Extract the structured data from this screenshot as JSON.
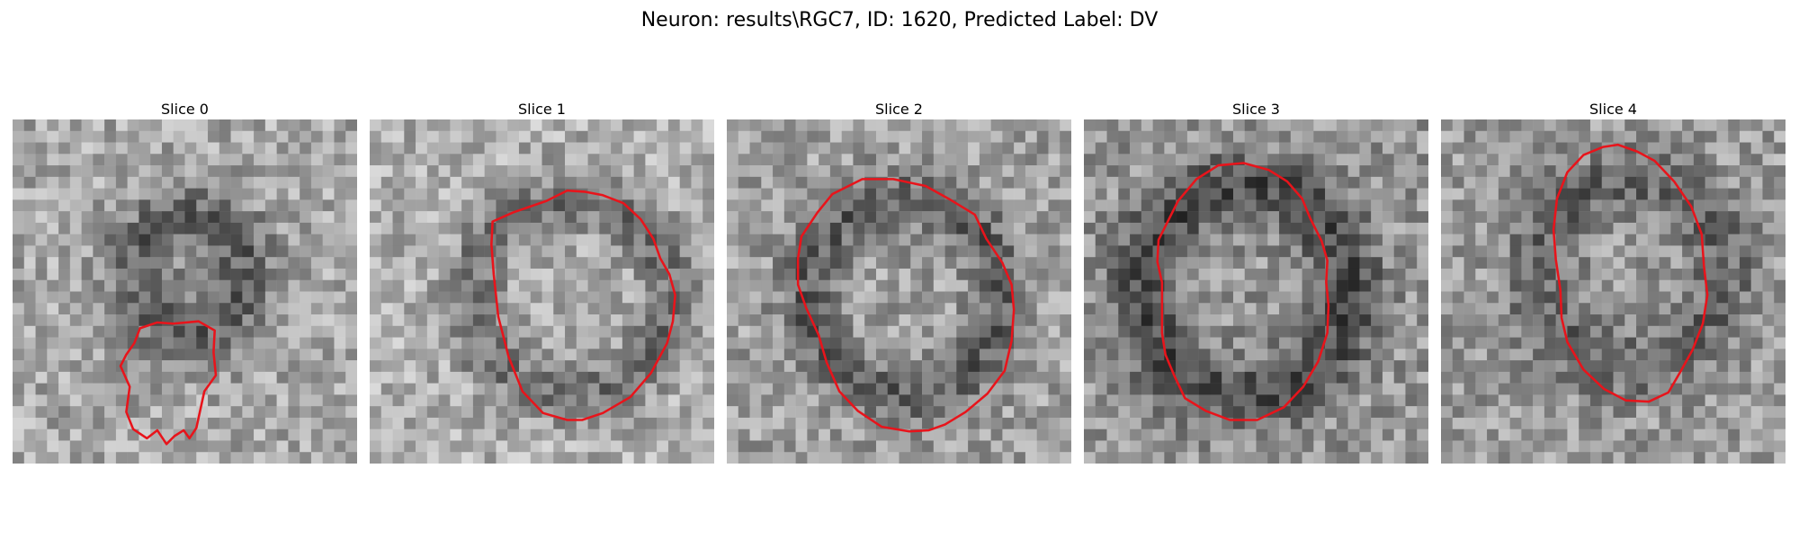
{
  "figure": {
    "title": "Neuron: results\\RGC7, ID: 1620, Predicted Label: DV"
  },
  "panels": [
    {
      "title": "Slice 0",
      "contour": [
        [
          14,
          17.8
        ],
        [
          16.2,
          17.6
        ],
        [
          17.6,
          18.4
        ],
        [
          17.5,
          20.3
        ],
        [
          17.7,
          22.3
        ],
        [
          16.7,
          23.7
        ],
        [
          16,
          26.9
        ],
        [
          15.4,
          27.8
        ],
        [
          14.9,
          27.1
        ],
        [
          14.1,
          27.6
        ],
        [
          13.4,
          28.3
        ],
        [
          12.6,
          27.1
        ],
        [
          11.7,
          27.8
        ],
        [
          10.5,
          27
        ],
        [
          9.9,
          25.5
        ],
        [
          10.2,
          23.3
        ],
        [
          9.4,
          21.5
        ],
        [
          9.9,
          20.5
        ],
        [
          10.6,
          19.5
        ],
        [
          11.1,
          18.2
        ],
        [
          12.6,
          17.7
        ]
      ],
      "cells_rows_hint": "noise-field"
    },
    {
      "title": "Slice 1",
      "contour": [
        [
          10.7,
          8.9
        ],
        [
          12.5,
          8.1
        ],
        [
          15.4,
          7.1
        ],
        [
          17.2,
          6.2
        ],
        [
          18.7,
          6.3
        ],
        [
          20.3,
          6.6
        ],
        [
          22.1,
          7.3
        ],
        [
          23.6,
          8.7
        ],
        [
          24.7,
          10.4
        ],
        [
          25.3,
          12.1
        ],
        [
          26.1,
          13.5
        ],
        [
          26.6,
          15.3
        ],
        [
          26.4,
          17.6
        ],
        [
          25.9,
          19.5
        ],
        [
          24.5,
          22.1
        ],
        [
          22.7,
          24.2
        ],
        [
          20.3,
          25.6
        ],
        [
          18.5,
          26.2
        ],
        [
          17.2,
          26.2
        ],
        [
          15.1,
          25.6
        ],
        [
          13.3,
          23.7
        ],
        [
          12.1,
          20.7
        ],
        [
          11.2,
          17.2
        ],
        [
          10.8,
          13.5
        ],
        [
          10.6,
          10.9
        ]
      ]
    },
    {
      "title": "Slice 2",
      "contour": [
        [
          6.5,
          10.2
        ],
        [
          7.9,
          8.1
        ],
        [
          9.2,
          6.5
        ],
        [
          11.8,
          5.2
        ],
        [
          14.5,
          5.2
        ],
        [
          17.3,
          5.8
        ],
        [
          19.3,
          6.9
        ],
        [
          21.6,
          8.3
        ],
        [
          22.6,
          10.4
        ],
        [
          24,
          12.5
        ],
        [
          24.8,
          14.4
        ],
        [
          25,
          16.6
        ],
        [
          24.8,
          19.3
        ],
        [
          24.2,
          21.9
        ],
        [
          22.7,
          23.9
        ],
        [
          20.8,
          25.5
        ],
        [
          19,
          26.6
        ],
        [
          17.6,
          27.1
        ],
        [
          15.9,
          27.2
        ],
        [
          13.5,
          26.8
        ],
        [
          11.4,
          25.4
        ],
        [
          9.8,
          23.7
        ],
        [
          8.7,
          21.2
        ],
        [
          8,
          18.8
        ],
        [
          6.9,
          16.4
        ],
        [
          6.2,
          14.4
        ],
        [
          6.2,
          12.1
        ]
      ]
    },
    {
      "title": "Slice 3",
      "contour": [
        [
          6.5,
          10.5
        ],
        [
          8.2,
          7.1
        ],
        [
          9.8,
          5.2
        ],
        [
          11.7,
          4
        ],
        [
          13.9,
          3.8
        ],
        [
          16.1,
          4.4
        ],
        [
          17.7,
          5.4
        ],
        [
          19,
          6.9
        ],
        [
          19.7,
          8.6
        ],
        [
          20.7,
          10.6
        ],
        [
          21.2,
          12.3
        ],
        [
          21.1,
          14.2
        ],
        [
          21.3,
          16.2
        ],
        [
          21.2,
          18.6
        ],
        [
          20.4,
          21.1
        ],
        [
          19.1,
          23.3
        ],
        [
          17.4,
          25.1
        ],
        [
          15.1,
          26.2
        ],
        [
          12.7,
          26.2
        ],
        [
          10.6,
          25.4
        ],
        [
          8.8,
          24.3
        ],
        [
          7.9,
          22.4
        ],
        [
          7.1,
          20.5
        ],
        [
          6.8,
          18.6
        ],
        [
          6.8,
          16.4
        ],
        [
          6.8,
          14.2
        ],
        [
          6.4,
          12.4
        ]
      ]
    },
    {
      "title": "Slice 4",
      "contour": [
        [
          10.1,
          6.9
        ],
        [
          11,
          4.6
        ],
        [
          12.4,
          3.1
        ],
        [
          14.1,
          2.4
        ],
        [
          15.4,
          2.2
        ],
        [
          17.1,
          2.8
        ],
        [
          18.6,
          3.6
        ],
        [
          20.3,
          5.4
        ],
        [
          21.8,
          7.6
        ],
        [
          22.7,
          10
        ],
        [
          22.9,
          12.8
        ],
        [
          23.2,
          15.3
        ],
        [
          22.8,
          17.8
        ],
        [
          21.9,
          20.1
        ],
        [
          20.9,
          21.9
        ],
        [
          19.8,
          23.8
        ],
        [
          18.1,
          24.6
        ],
        [
          16.1,
          24.5
        ],
        [
          14.2,
          23.5
        ],
        [
          12.4,
          21.8
        ],
        [
          11,
          19.4
        ],
        [
          10.5,
          17.3
        ],
        [
          10.4,
          14.9
        ],
        [
          10,
          12.2
        ],
        [
          9.8,
          9.6
        ]
      ]
    }
  ]
}
